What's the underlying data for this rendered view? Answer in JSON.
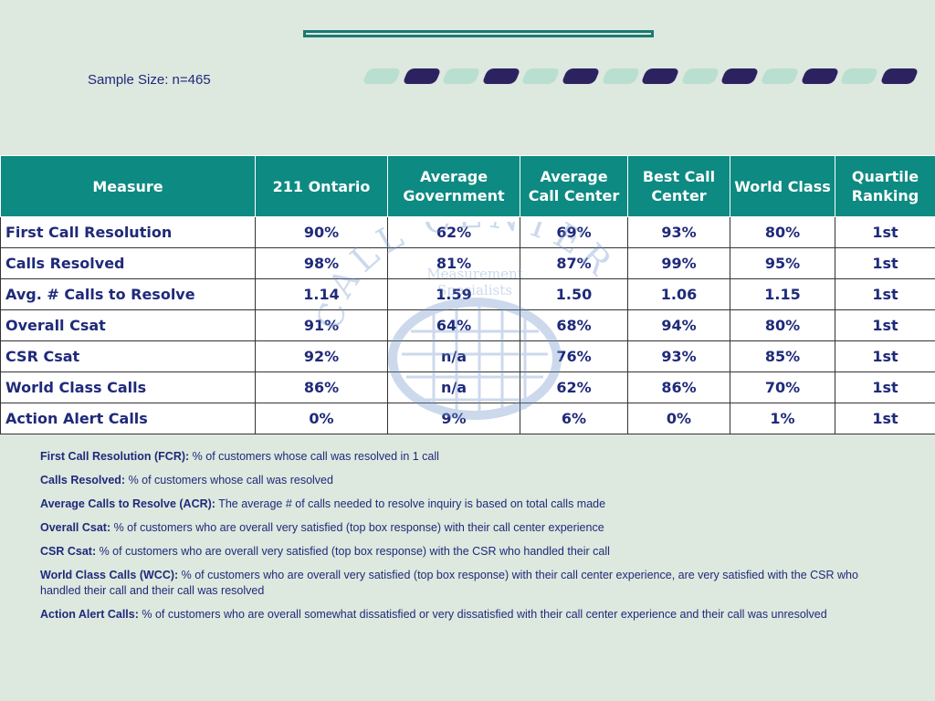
{
  "header": {
    "sample_size": "Sample Size: n=465"
  },
  "decor": {
    "pills": [
      "light",
      "dark",
      "light",
      "dark",
      "light",
      "dark",
      "light",
      "dark",
      "light",
      "dark",
      "light",
      "dark",
      "light",
      "dark"
    ],
    "colors": {
      "teal": "#0d8a82",
      "navy": "#1f2a7a",
      "background": "#dde8df",
      "pill_light": "#b8dfcf",
      "pill_dark": "#2d2260"
    }
  },
  "table": {
    "headers": [
      "Measure",
      "211 Ontario",
      "Average Government",
      "Average Call Center",
      "Best Call Center",
      "World Class",
      "Quartile Ranking"
    ],
    "rows": [
      [
        "First Call Resolution",
        "90%",
        "62%",
        "69%",
        "93%",
        "80%",
        "1st"
      ],
      [
        "Calls Resolved",
        "98%",
        "81%",
        "87%",
        "99%",
        "95%",
        "1st"
      ],
      [
        "Avg. # Calls to Resolve",
        "1.14",
        "1.59",
        "1.50",
        "1.06",
        "1.15",
        "1st"
      ],
      [
        "Overall Csat",
        "91%",
        "64%",
        "68%",
        "94%",
        "80%",
        "1st"
      ],
      [
        "CSR Csat",
        "92%",
        "n/a",
        "76%",
        "93%",
        "85%",
        "1st"
      ],
      [
        "World Class Calls",
        "86%",
        "n/a",
        "62%",
        "86%",
        "70%",
        "1st"
      ],
      [
        "Action Alert Calls",
        "0%",
        "9%",
        "6%",
        "0%",
        "1%",
        "1st"
      ]
    ]
  },
  "watermark": {
    "arc_text": "CALL CENTER",
    "line1": "Measurement",
    "line2": "Specialists"
  },
  "definitions": [
    {
      "term": "First Call Resolution (FCR):",
      "text": " % of customers whose call was resolved in 1 call"
    },
    {
      "term": "Calls Resolved:",
      "text": " % of customers whose call was resolved"
    },
    {
      "term": "Average Calls to Resolve (ACR):",
      "text": " The average # of calls needed to resolve inquiry is based on total calls made"
    },
    {
      "term": "Overall Csat:",
      "text": " % of customers who are overall very satisfied (top box response) with their call center experience"
    },
    {
      "term": "CSR Csat:",
      "text": " % of customers who are overall very satisfied (top box response) with the CSR who handled their call"
    },
    {
      "term": "World Class Calls (WCC):",
      "text": " % of customers who are overall very satisfied (top box response) with their call center experience, are very satisfied with the CSR who handled their call and their call was resolved"
    },
    {
      "term": "Action Alert Calls:",
      "text": " % of customers who are overall somewhat dissatisfied or very dissatisfied with their call center experience and their call was unresolved"
    }
  ]
}
